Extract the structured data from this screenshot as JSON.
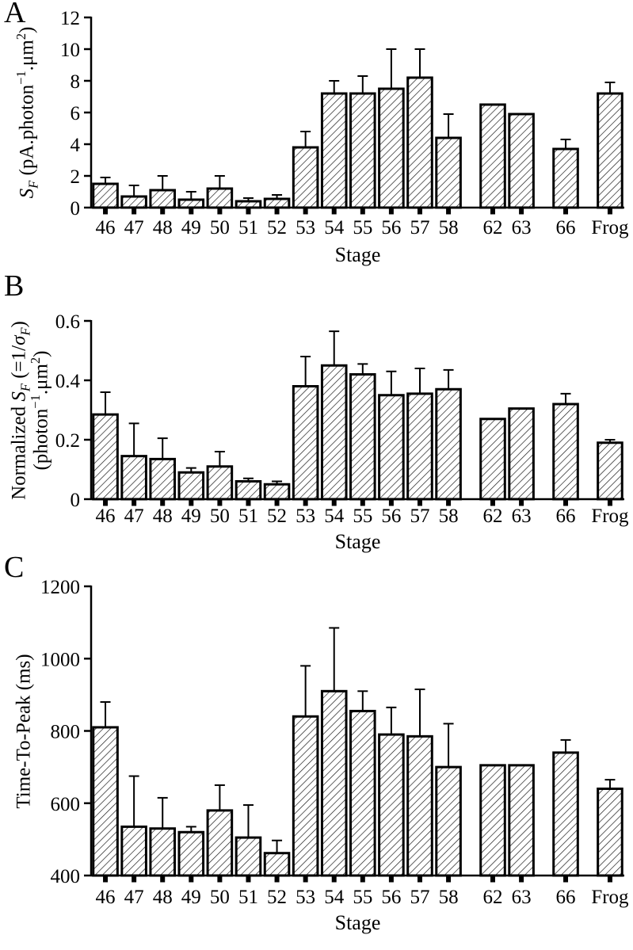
{
  "figure": {
    "background_color": "#ffffff",
    "ink_color": "#000000",
    "bar_fill_style": "diagonal-hatch"
  },
  "chart_data": [
    {
      "type": "bar",
      "panel_label": "A",
      "xlabel": "Stage",
      "ylabel": "SF (pA.photon−1.μm2)",
      "ylabel_lines": [
        [
          {
            "t": "S",
            "i": true
          },
          {
            "t": "F",
            "i": true,
            "sub": true
          },
          {
            "t": " (pA.photon"
          },
          {
            "t": "−1",
            "sup": true
          },
          {
            "t": ".μm"
          },
          {
            "t": "2",
            "sup": true
          },
          {
            "t": ")"
          }
        ]
      ],
      "categories": [
        "46",
        "47",
        "48",
        "49",
        "50",
        "51",
        "52",
        "53",
        "54",
        "55",
        "56",
        "57",
        "58",
        "62",
        "63",
        "66",
        "Frog"
      ],
      "values": [
        1.5,
        0.7,
        1.1,
        0.5,
        1.2,
        0.4,
        0.55,
        3.8,
        7.2,
        7.2,
        7.5,
        8.2,
        4.4,
        6.5,
        5.9,
        3.7,
        7.2
      ],
      "errors": [
        0.4,
        0.7,
        0.9,
        0.5,
        0.8,
        0.2,
        0.25,
        1.0,
        0.8,
        1.1,
        2.5,
        1.8,
        1.5,
        0,
        0,
        0.6,
        0.7
      ],
      "ylim": [
        0,
        12
      ],
      "yticks": [
        0,
        2,
        4,
        6,
        8,
        10,
        12
      ],
      "gaps_before": [
        "62",
        "66",
        "Frog"
      ],
      "grid": false,
      "legend": false
    },
    {
      "type": "bar",
      "panel_label": "B",
      "xlabel": "Stage",
      "ylabel": "Normalized SF (=1/σF) (photon−1.μm2)",
      "ylabel_lines": [
        [
          {
            "t": "Normalized "
          },
          {
            "t": "S",
            "i": true
          },
          {
            "t": "F",
            "i": true,
            "sub": true
          },
          {
            "t": "  (=1/"
          },
          {
            "t": "σ",
            "i": true
          },
          {
            "t": "F",
            "i": true,
            "sub": true
          },
          {
            "t": ")"
          }
        ],
        [
          {
            "t": "(photon"
          },
          {
            "t": "−1",
            "sup": true
          },
          {
            "t": ".μm"
          },
          {
            "t": "2",
            "sup": true
          },
          {
            "t": ")"
          }
        ]
      ],
      "categories": [
        "46",
        "47",
        "48",
        "49",
        "50",
        "51",
        "52",
        "53",
        "54",
        "55",
        "56",
        "57",
        "58",
        "62",
        "63",
        "66",
        "Frog"
      ],
      "values": [
        0.285,
        0.145,
        0.135,
        0.09,
        0.11,
        0.06,
        0.05,
        0.38,
        0.45,
        0.42,
        0.35,
        0.355,
        0.37,
        0.27,
        0.305,
        0.32,
        0.19
      ],
      "errors": [
        0.075,
        0.11,
        0.07,
        0.015,
        0.05,
        0.01,
        0.01,
        0.1,
        0.115,
        0.035,
        0.08,
        0.085,
        0.065,
        0,
        0,
        0.035,
        0.01
      ],
      "ylim": [
        0,
        0.6
      ],
      "yticks": [
        0,
        0.2,
        0.4,
        0.6
      ],
      "gaps_before": [
        "62",
        "66",
        "Frog"
      ],
      "grid": false,
      "legend": false
    },
    {
      "type": "bar",
      "panel_label": "C",
      "xlabel": "Stage",
      "ylabel": "Time-To-Peak (ms)",
      "ylabel_lines": [
        [
          {
            "t": "Time-To-Peak (ms)"
          }
        ]
      ],
      "categories": [
        "46",
        "47",
        "48",
        "49",
        "50",
        "51",
        "52",
        "53",
        "54",
        "55",
        "56",
        "57",
        "58",
        "62",
        "63",
        "66",
        "Frog"
      ],
      "values": [
        810,
        535,
        530,
        520,
        580,
        505,
        462,
        840,
        910,
        855,
        790,
        785,
        700,
        705,
        705,
        740,
        640
      ],
      "errors": [
        70,
        140,
        85,
        15,
        70,
        90,
        35,
        140,
        175,
        55,
        75,
        130,
        120,
        0,
        0,
        35,
        25
      ],
      "ylim": [
        400,
        1200
      ],
      "yticks": [
        400,
        600,
        800,
        1000,
        1200
      ],
      "gaps_before": [
        "62",
        "66",
        "Frog"
      ],
      "grid": false,
      "legend": false
    }
  ]
}
